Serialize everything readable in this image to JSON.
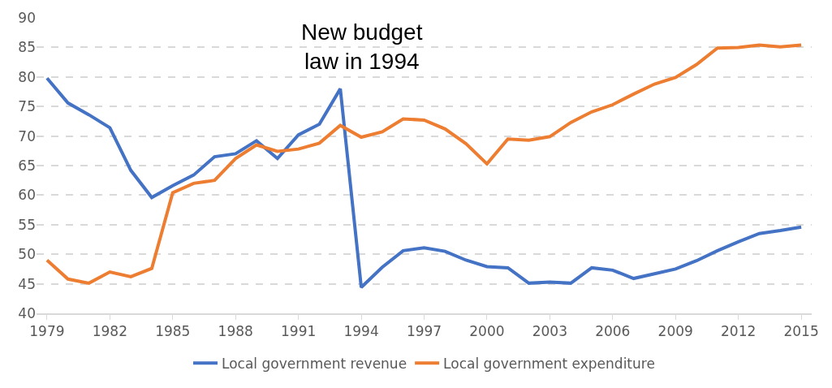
{
  "chart_data": {
    "type": "line",
    "x": [
      1979,
      1980,
      1981,
      1982,
      1983,
      1984,
      1985,
      1986,
      1987,
      1988,
      1989,
      1990,
      1991,
      1992,
      1993,
      1994,
      1995,
      1996,
      1997,
      1998,
      1999,
      2000,
      2001,
      2002,
      2003,
      2004,
      2005,
      2006,
      2007,
      2008,
      2009,
      2010,
      2011,
      2012,
      2013,
      2014,
      2015
    ],
    "series": [
      {
        "name": "Local government revenue",
        "color": "#4472c4",
        "values": [
          79.8,
          75.6,
          73.6,
          71.4,
          64.2,
          59.6,
          61.6,
          63.4,
          66.5,
          67.0,
          69.2,
          66.2,
          70.2,
          72.0,
          78.0,
          44.4,
          47.8,
          50.6,
          51.1,
          50.5,
          49.0,
          47.9,
          47.7,
          45.1,
          45.3,
          45.1,
          47.7,
          47.3,
          45.9,
          46.7,
          47.5,
          48.9,
          50.6,
          52.1,
          53.5,
          54.0,
          54.6
        ]
      },
      {
        "name": "Local government expenditure",
        "color": "#ed7d31",
        "values": [
          49.0,
          45.8,
          45.1,
          47.0,
          46.2,
          47.6,
          60.4,
          62.0,
          62.5,
          66.2,
          68.5,
          67.4,
          67.8,
          68.8,
          71.8,
          69.8,
          70.7,
          72.9,
          72.7,
          71.2,
          68.7,
          65.3,
          69.5,
          69.3,
          69.9,
          72.3,
          74.1,
          75.3,
          77.1,
          78.8,
          79.9,
          82.1,
          84.9,
          85.0,
          85.4,
          85.1,
          85.4
        ]
      }
    ],
    "xlim": [
      1978.5,
      2015.5
    ],
    "xticks": [
      1979,
      1982,
      1985,
      1988,
      1991,
      1994,
      1997,
      2000,
      2003,
      2006,
      2009,
      2012,
      2015
    ],
    "ylim": [
      40,
      90
    ],
    "yticks": [
      40,
      45,
      50,
      55,
      60,
      65,
      70,
      75,
      80,
      85,
      90
    ],
    "grid": "y",
    "legend": "bottom",
    "marker": "none",
    "line_style": "solid",
    "annotations": [
      "New budget\nlaw in 1994"
    ]
  }
}
